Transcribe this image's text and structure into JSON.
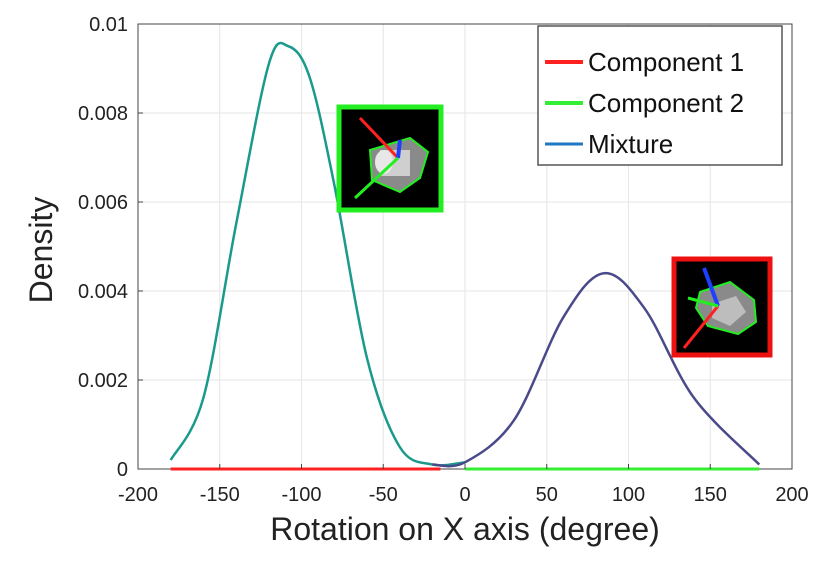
{
  "chart_data": {
    "type": "line",
    "title": "",
    "xlabel": "Rotation on X axis (degree)",
    "ylabel": "Density",
    "xlim": [
      -200,
      200
    ],
    "ylim": [
      0,
      0.01
    ],
    "x_ticks": [
      -200,
      -150,
      -100,
      -50,
      0,
      50,
      100,
      150,
      200
    ],
    "x_tick_labels": [
      "-200",
      "-150",
      "-100",
      "-50",
      "0",
      "50",
      "100",
      "150",
      "200"
    ],
    "y_ticks": [
      0,
      0.002,
      0.004,
      0.006,
      0.008,
      0.01
    ],
    "y_tick_labels": [
      "0",
      "0.002",
      "0.004",
      "0.006",
      "0.008",
      "0.01"
    ],
    "grid": true,
    "legend_position": "top-right",
    "series": [
      {
        "name": "Component 1",
        "color": "#ff2020",
        "x": [
          -180,
          -150,
          -120,
          -90,
          -60,
          -30,
          -15,
          0,
          30,
          60,
          90,
          120,
          150,
          180
        ],
        "y": [
          0,
          0,
          0,
          0,
          0,
          1e-05,
          4e-05,
          0.00014,
          0.0011,
          0.0034,
          0.0044,
          0.003,
          0.0011,
          0.0001
        ]
      },
      {
        "name": "Component 2",
        "color": "#33ee33",
        "x": [
          -180,
          -160,
          -140,
          -120,
          -108,
          -95,
          -80,
          -60,
          -40,
          -20,
          0,
          20,
          60,
          100,
          140,
          180
        ],
        "y": [
          0.0002,
          0.0016,
          0.0055,
          0.0091,
          0.0095,
          0.0088,
          0.0064,
          0.0025,
          0.0005,
          6e-05,
          1e-05,
          0,
          0,
          0,
          0,
          0
        ]
      },
      {
        "name": "Mixture",
        "color": "#1f77c4",
        "x": [
          -180,
          -160,
          -140,
          -120,
          -108,
          -95,
          -80,
          -60,
          -40,
          -20,
          0,
          30,
          60,
          85,
          110,
          140,
          180
        ],
        "y": [
          0.0002,
          0.0016,
          0.0055,
          0.0091,
          0.0095,
          0.0088,
          0.0064,
          0.0025,
          0.0005,
          0.0001,
          0.00015,
          0.0011,
          0.0034,
          0.0044,
          0.0036,
          0.0016,
          0.0001
        ]
      }
    ]
  },
  "colors": {
    "green_curve": "#1a9a8a",
    "purple_curve": "#4a4a8a",
    "inset_green_border": "#22ee22",
    "inset_red_border": "#ee1111",
    "grid": "#e6e6e6",
    "axis": "#444444"
  },
  "insets": [
    {
      "name": "component-2-pose-thumbnail",
      "border": "#22ee22"
    },
    {
      "name": "component-1-pose-thumbnail",
      "border": "#ee1111"
    }
  ]
}
